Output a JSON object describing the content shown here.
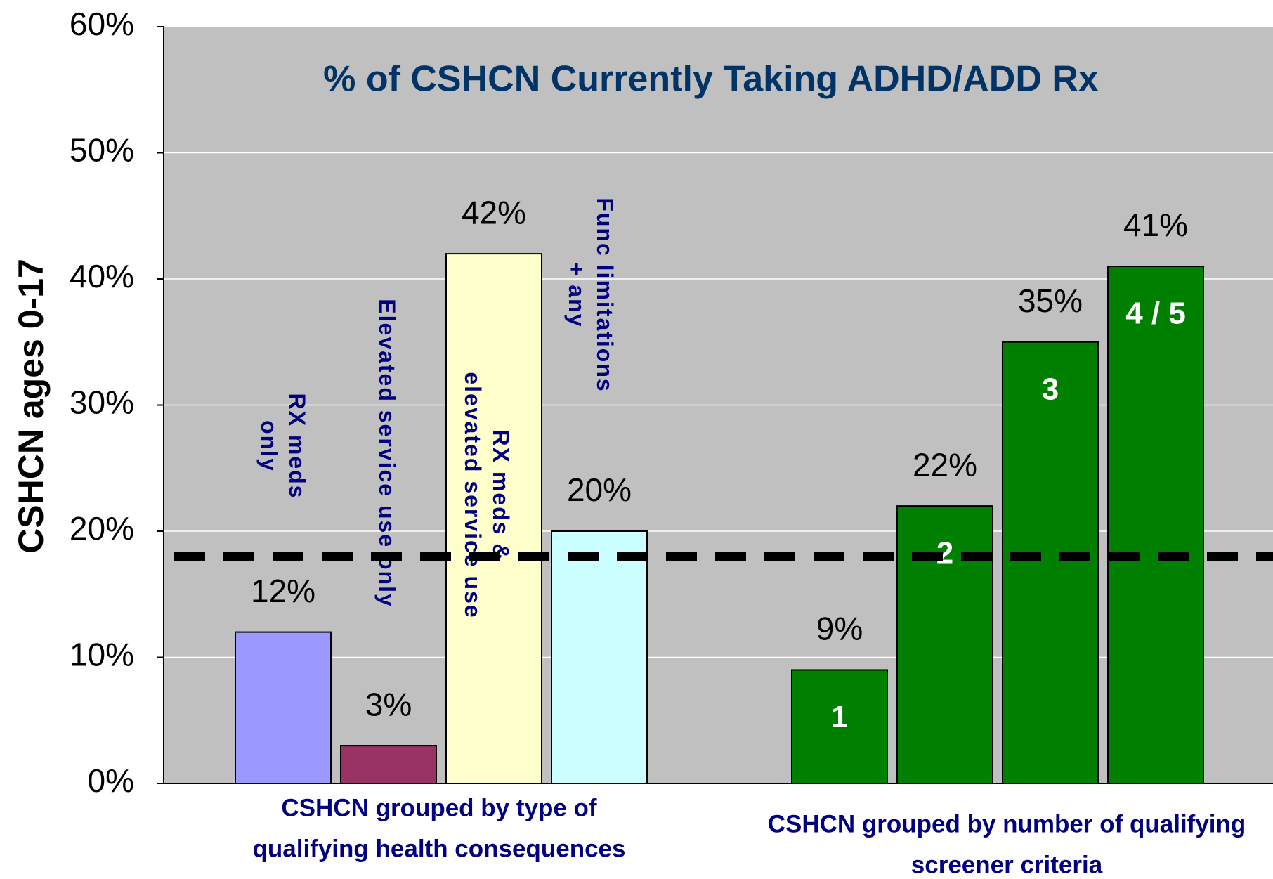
{
  "chart_data": {
    "type": "bar",
    "title": "% of CSHCN Currently Taking ADHD/ADD Rx",
    "y_label": "CSHCN ages 0-17",
    "ylim": [
      0,
      60
    ],
    "yticks": [
      {
        "value": 0,
        "label": "0%"
      },
      {
        "value": 10,
        "label": "10%"
      },
      {
        "value": 20,
        "label": "20%"
      },
      {
        "value": 30,
        "label": "30%"
      },
      {
        "value": 40,
        "label": "40%"
      },
      {
        "value": 50,
        "label": "50%"
      },
      {
        "value": 60,
        "label": "60%"
      }
    ],
    "grid": true,
    "reference_value": 18,
    "groups": [
      {
        "label": [
          "CSHCN grouped by type of",
          "qualifying health consequences"
        ],
        "category_style": "rotated",
        "categories": [
          [
            "RX meds",
            "only"
          ],
          [
            "Elevated service use only"
          ],
          [
            "RX meds &",
            "elevated service use"
          ],
          [
            "Func limitations",
            "+ any"
          ]
        ],
        "values": [
          12,
          3,
          42,
          20
        ],
        "value_labels": [
          "12%",
          "3%",
          "42%",
          "20%"
        ],
        "colors": [
          "#9999ff",
          "#993366",
          "#ffffcc",
          "#ccffff"
        ]
      },
      {
        "label": [
          "CSHCN grouped by number of qualifying",
          "screener criteria"
        ],
        "category_style": "inside",
        "categories": [
          [
            "1"
          ],
          [
            "2"
          ],
          [
            "3"
          ],
          [
            "4 / 5"
          ]
        ],
        "values": [
          9,
          22,
          35,
          41
        ],
        "value_labels": [
          "9%",
          "22%",
          "35%",
          "41%"
        ],
        "colors": [
          "#008000",
          "#008000",
          "#008000",
          "#008000"
        ]
      }
    ]
  }
}
